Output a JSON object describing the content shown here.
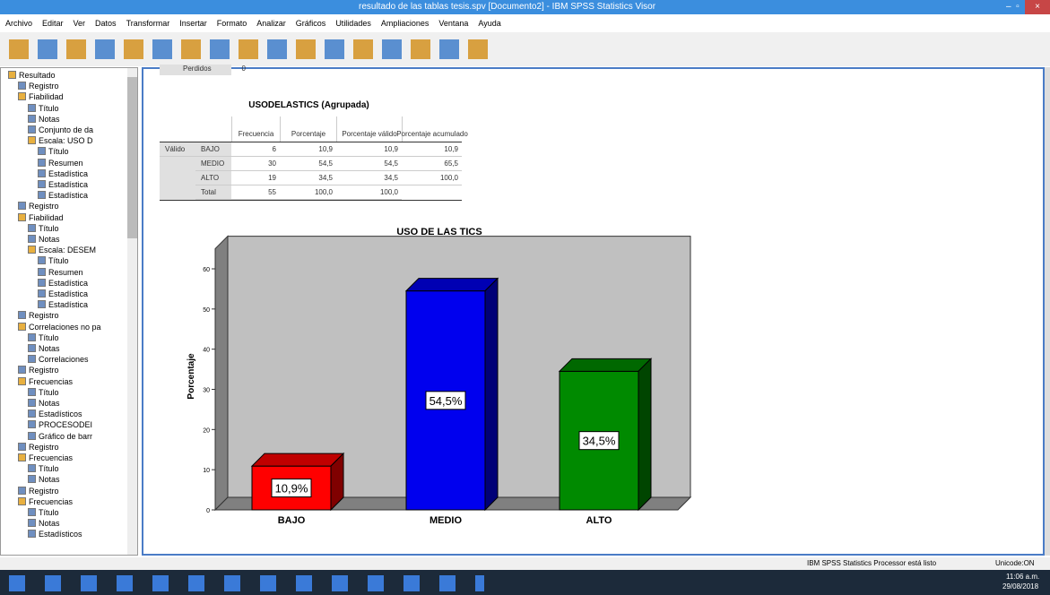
{
  "window": {
    "title": "resultado de las tablas tesis.spv [Documento2] - IBM SPSS Statistics Visor"
  },
  "menu": [
    "Archivo",
    "Editar",
    "Ver",
    "Datos",
    "Transformar",
    "Insertar",
    "Formato",
    "Analizar",
    "Gráficos",
    "Utilidades",
    "Ampliaciones",
    "Ventana",
    "Ayuda"
  ],
  "tree": [
    {
      "label": "Resultado",
      "children": [
        {
          "label": "Registro"
        },
        {
          "label": "Fiabilidad",
          "children": [
            {
              "label": "Título"
            },
            {
              "label": "Notas"
            },
            {
              "label": "Conjunto de da"
            },
            {
              "label": "Escala: USO D",
              "children": [
                {
                  "label": "Título"
                },
                {
                  "label": "Resumen"
                },
                {
                  "label": "Estadística"
                },
                {
                  "label": "Estadística"
                },
                {
                  "label": "Estadística"
                }
              ]
            }
          ]
        },
        {
          "label": "Registro"
        },
        {
          "label": "Fiabilidad",
          "children": [
            {
              "label": "Título"
            },
            {
              "label": "Notas"
            },
            {
              "label": "Escala: DESEM",
              "children": [
                {
                  "label": "Título"
                },
                {
                  "label": "Resumen"
                },
                {
                  "label": "Estadística"
                },
                {
                  "label": "Estadística"
                },
                {
                  "label": "Estadística"
                }
              ]
            }
          ]
        },
        {
          "label": "Registro"
        },
        {
          "label": "Correlaciones no pa",
          "children": [
            {
              "label": "Título"
            },
            {
              "label": "Notas"
            },
            {
              "label": "Correlaciones"
            }
          ]
        },
        {
          "label": "Registro"
        },
        {
          "label": "Frecuencias",
          "children": [
            {
              "label": "Título"
            },
            {
              "label": "Notas"
            },
            {
              "label": "Estadísticos"
            },
            {
              "label": "PROCESODEI"
            },
            {
              "label": "Gráfico de barr"
            }
          ]
        },
        {
          "label": "Registro"
        },
        {
          "label": "Frecuencias",
          "children": [
            {
              "label": "Título"
            },
            {
              "label": "Notas"
            }
          ]
        },
        {
          "label": "Registro"
        },
        {
          "label": "Frecuencias",
          "children": [
            {
              "label": "Título"
            },
            {
              "label": "Notas"
            },
            {
              "label": "Estadísticos"
            }
          ]
        }
      ]
    }
  ],
  "missing_row": [
    "Perdidos",
    "0"
  ],
  "table": {
    "title": "USODELASTICS (Agrupada)",
    "header": [
      "Frecuencia",
      "Porcentaje",
      "Porcentaje válido",
      "Porcentaje acumulado"
    ],
    "rows": [
      [
        "Válido",
        "BAJO",
        "6",
        "10,9",
        "10,9",
        "10,9"
      ],
      [
        null,
        "MEDIO",
        "30",
        "54,5",
        "54,5",
        "65,5"
      ],
      [
        null,
        "ALTO",
        "19",
        "34,5",
        "34,5",
        "100,0"
      ],
      [
        null,
        "Total",
        "55",
        "100,0",
        "100,0",
        null
      ]
    ]
  },
  "chart": {
    "type": "bar3d",
    "title": "USO DE LAS TICS",
    "y_label": "Porcentaje",
    "categories": [
      "BAJO",
      "MEDIO",
      "ALTO"
    ],
    "values": [
      10.9,
      54.5,
      34.5
    ],
    "value_labels": [
      "10,9%",
      "54,5%",
      "34,5%"
    ],
    "colors": [
      "#ff0000",
      "#0000ee",
      "#008a00"
    ],
    "ylim": [
      0,
      65
    ],
    "yticks": [
      0,
      10,
      20,
      30,
      40,
      50,
      60
    ]
  },
  "status": [
    "IBM SPSS Statistics Processor está listo",
    "Unicode:ON"
  ],
  "clock": {
    "time": "11:06 a.m.",
    "date": "29/08/2018"
  }
}
